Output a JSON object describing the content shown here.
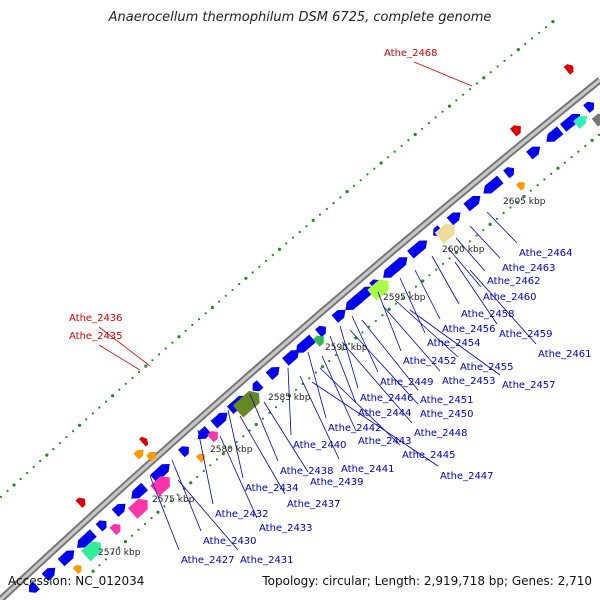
{
  "title": "Anaerocellum thermophilum DSM 6725, complete genome",
  "accession": "Accession: NC_012034",
  "topology": "Topology: circular; Length: 2,919,718 bp; Genes: 2,710",
  "colors": {
    "backbone": "#999999",
    "cds": "#0000ee",
    "highlight": "#dd0000",
    "tick_dot": "#228b22",
    "gene_label": "#0000cc",
    "highlight_label": "#dd0000"
  },
  "kbp_ticks": [
    "2570 kbp",
    "2575 kbp",
    "2580 kbp",
    "2585 kbp",
    "2590 kbp",
    "2595 kbp",
    "2600 kbp",
    "2605 kbp"
  ],
  "highlight_labels": [
    "Athe_2468",
    "Athe_2436",
    "Athe_2435"
  ],
  "gene_labels": [
    "Athe_2464",
    "Athe_2463",
    "Athe_2462",
    "Athe_2460",
    "Athe_2458",
    "Athe_2459",
    "Athe_2461",
    "Athe_2456",
    "Athe_2454",
    "Athe_2452",
    "Athe_2455",
    "Athe_2453",
    "Athe_2457",
    "Athe_2449",
    "Athe_2451",
    "Athe_2446",
    "Athe_2450",
    "Athe_2444",
    "Athe_2448",
    "Athe_2442",
    "Athe_2443",
    "Athe_2440",
    "Athe_2445",
    "Athe_2441",
    "Athe_2447",
    "Athe_2438",
    "Athe_2439",
    "Athe_2434",
    "Athe_2437",
    "Athe_2432",
    "Athe_2433",
    "Athe_2430",
    "Athe_2427",
    "Athe_2431"
  ]
}
